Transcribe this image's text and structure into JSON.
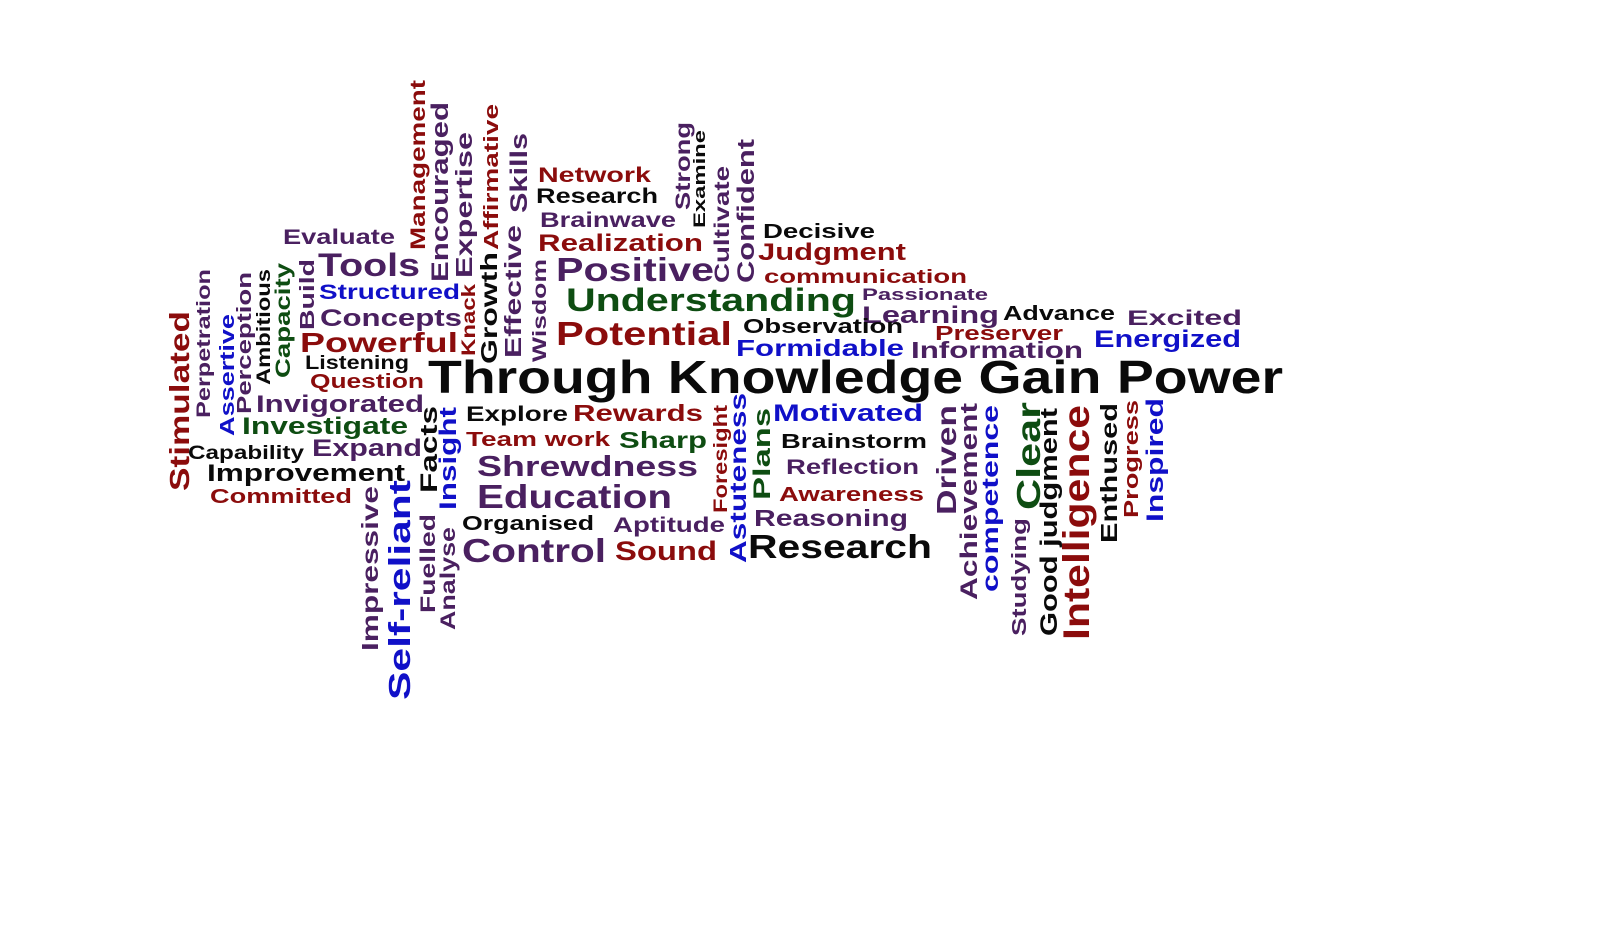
{
  "palette": {
    "red": "#8b0c0c",
    "purple": "#4a2060",
    "green": "#0e4d12",
    "blue": "#1010c8",
    "black": "#0a0a0a"
  },
  "title": "Through Knowledge Gain Power",
  "words": [
    {
      "text": "Network",
      "color": "red"
    },
    {
      "text": "Research",
      "color": "black"
    },
    {
      "text": "Brainwave",
      "color": "purple"
    },
    {
      "text": "Realization",
      "color": "red"
    },
    {
      "text": "Positive",
      "color": "purple"
    },
    {
      "text": "Understanding",
      "color": "green"
    },
    {
      "text": "Potential",
      "color": "red"
    },
    {
      "text": "Evaluate",
      "color": "purple"
    },
    {
      "text": "Tools",
      "color": "purple"
    },
    {
      "text": "Structured",
      "color": "blue"
    },
    {
      "text": "Concepts",
      "color": "purple"
    },
    {
      "text": "Powerful",
      "color": "red"
    },
    {
      "text": "Listening",
      "color": "black"
    },
    {
      "text": "Question",
      "color": "red"
    },
    {
      "text": "Invigorated",
      "color": "purple"
    },
    {
      "text": "Investigate",
      "color": "green"
    },
    {
      "text": "Expand",
      "color": "purple"
    },
    {
      "text": "Capability",
      "color": "black"
    },
    {
      "text": "Improvement",
      "color": "black"
    },
    {
      "text": "Committed",
      "color": "red"
    },
    {
      "text": "Explore",
      "color": "black"
    },
    {
      "text": "Rewards",
      "color": "red"
    },
    {
      "text": "Team work",
      "color": "red"
    },
    {
      "text": "Sharp",
      "color": "green"
    },
    {
      "text": "Shrewdness",
      "color": "purple"
    },
    {
      "text": "Education",
      "color": "purple"
    },
    {
      "text": "Organised",
      "color": "black"
    },
    {
      "text": "Aptitude",
      "color": "purple"
    },
    {
      "text": "Control",
      "color": "purple"
    },
    {
      "text": "Sound",
      "color": "red"
    },
    {
      "text": "Decisive",
      "color": "black"
    },
    {
      "text": "Judgment",
      "color": "red"
    },
    {
      "text": "communication",
      "color": "red"
    },
    {
      "text": "Passionate",
      "color": "purple"
    },
    {
      "text": "Learning",
      "color": "purple"
    },
    {
      "text": "Advance",
      "color": "black"
    },
    {
      "text": "Excited",
      "color": "purple"
    },
    {
      "text": "Observation",
      "color": "black"
    },
    {
      "text": "Preserver",
      "color": "red"
    },
    {
      "text": "Energized",
      "color": "blue"
    },
    {
      "text": "Formidable",
      "color": "blue"
    },
    {
      "text": "Information",
      "color": "purple"
    },
    {
      "text": "Motivated",
      "color": "blue"
    },
    {
      "text": "Brainstorm",
      "color": "black"
    },
    {
      "text": "Reflection",
      "color": "purple"
    },
    {
      "text": "Awareness",
      "color": "red"
    },
    {
      "text": "Reasoning",
      "color": "purple"
    },
    {
      "text": "Research",
      "color": "black"
    },
    {
      "text": "Management",
      "color": "red"
    },
    {
      "text": "Encouraged",
      "color": "purple"
    },
    {
      "text": "Expertise",
      "color": "purple"
    },
    {
      "text": "Affirmative",
      "color": "red"
    },
    {
      "text": "Growth",
      "color": "black"
    },
    {
      "text": "Skills",
      "color": "purple"
    },
    {
      "text": "Effective",
      "color": "purple"
    },
    {
      "text": "Wisdom",
      "color": "purple"
    },
    {
      "text": "Knack",
      "color": "red"
    },
    {
      "text": "Strong",
      "color": "purple"
    },
    {
      "text": "Examine",
      "color": "black"
    },
    {
      "text": "Cultivate",
      "color": "purple"
    },
    {
      "text": "Confident",
      "color": "purple"
    },
    {
      "text": "Stimulated",
      "color": "red"
    },
    {
      "text": "Perpetration",
      "color": "purple"
    },
    {
      "text": "Assertive",
      "color": "blue"
    },
    {
      "text": "Perception",
      "color": "purple"
    },
    {
      "text": "Ambitious",
      "color": "black"
    },
    {
      "text": "Capacity",
      "color": "green"
    },
    {
      "text": "Build",
      "color": "purple"
    },
    {
      "text": "Facts",
      "color": "black"
    },
    {
      "text": "Insight",
      "color": "blue"
    },
    {
      "text": "Impressive",
      "color": "purple"
    },
    {
      "text": "Self-reliant",
      "color": "blue"
    },
    {
      "text": "Fuelled",
      "color": "purple"
    },
    {
      "text": "Analyse",
      "color": "purple"
    },
    {
      "text": "Foresight",
      "color": "red"
    },
    {
      "text": "Astuteness",
      "color": "blue"
    },
    {
      "text": "Plans",
      "color": "green"
    },
    {
      "text": "Driven",
      "color": "purple"
    },
    {
      "text": "Achievement",
      "color": "purple"
    },
    {
      "text": "competence",
      "color": "blue"
    },
    {
      "text": "Studying",
      "color": "purple"
    },
    {
      "text": "Clear",
      "color": "green"
    },
    {
      "text": "Good judgment",
      "color": "black"
    },
    {
      "text": "Intelligence",
      "color": "red"
    },
    {
      "text": "Enthused",
      "color": "black"
    },
    {
      "text": "Progress",
      "color": "red"
    },
    {
      "text": "Inspired",
      "color": "blue"
    }
  ]
}
